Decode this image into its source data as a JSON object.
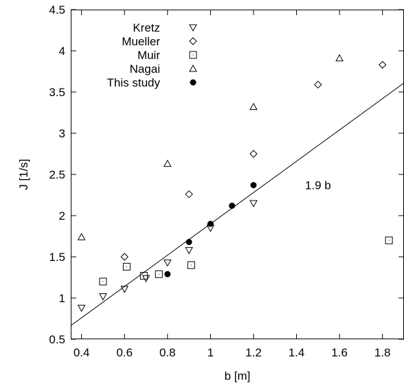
{
  "chart_data": {
    "type": "scatter",
    "xlabel": "b [m]",
    "ylabel": "J [1/s]",
    "xlim": [
      0.35,
      1.9
    ],
    "ylim": [
      0.5,
      4.5
    ],
    "x_ticks": [
      0.4,
      0.6,
      0.8,
      1,
      1.2,
      1.4,
      1.6,
      1.8
    ],
    "x_tick_labels": [
      "0.4",
      "0.6",
      "0.8",
      "1",
      "1.2",
      "1.4",
      "1.6",
      "1.8"
    ],
    "y_ticks": [
      0.5,
      1,
      1.5,
      2,
      2.5,
      3,
      3.5,
      4,
      4.5
    ],
    "y_tick_labels": [
      "0.5",
      "1",
      "1.5",
      "2",
      "2.5",
      "3",
      "3.5",
      "4",
      "4.5"
    ],
    "grid": false,
    "legend_position": "top-left",
    "series": [
      {
        "name": "Kretz",
        "marker": "triangle-down",
        "points": [
          [
            0.4,
            0.88
          ],
          [
            0.5,
            1.02
          ],
          [
            0.6,
            1.11
          ],
          [
            0.7,
            1.24
          ],
          [
            0.8,
            1.43
          ],
          [
            0.9,
            1.58
          ],
          [
            1.0,
            1.85
          ],
          [
            1.2,
            2.15
          ]
        ]
      },
      {
        "name": "Mueller",
        "marker": "diamond",
        "points": [
          [
            0.6,
            1.5
          ],
          [
            0.9,
            2.26
          ],
          [
            1.2,
            2.75
          ],
          [
            1.5,
            3.59
          ],
          [
            1.8,
            3.83
          ]
        ]
      },
      {
        "name": "Muir",
        "marker": "square",
        "points": [
          [
            0.5,
            1.2
          ],
          [
            0.61,
            1.38
          ],
          [
            0.69,
            1.27
          ],
          [
            0.76,
            1.29
          ],
          [
            0.91,
            1.4
          ],
          [
            1.83,
            1.7
          ]
        ]
      },
      {
        "name": "Nagai",
        "marker": "triangle-up",
        "points": [
          [
            0.4,
            1.74
          ],
          [
            0.8,
            2.63
          ],
          [
            1.2,
            3.32
          ],
          [
            1.6,
            3.91
          ]
        ]
      },
      {
        "name": "This study",
        "marker": "filled-circle",
        "points": [
          [
            0.8,
            1.29
          ],
          [
            0.9,
            1.68
          ],
          [
            1.0,
            1.9
          ],
          [
            1.1,
            2.12
          ],
          [
            1.2,
            2.37
          ]
        ]
      }
    ],
    "fit_line": {
      "slope": 1.9,
      "intercept": 0,
      "label": "1.9 b",
      "label_position": [
        1.5,
        2.32
      ]
    }
  }
}
